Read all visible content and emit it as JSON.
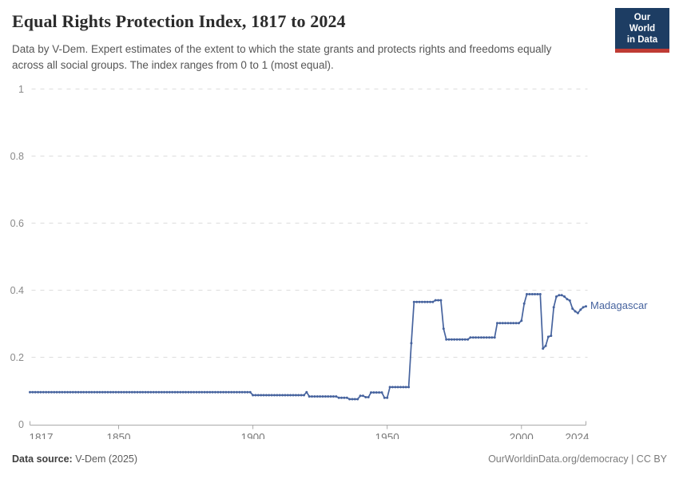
{
  "header": {
    "title": "Equal Rights Protection Index, 1817 to 2024",
    "subtitle": "Data by V-Dem. Expert estimates of the extent to which the state grants and protects rights and freedoms equally across all social groups. The index ranges from 0 to 1 (most equal)."
  },
  "logo": {
    "line1": "Our World",
    "line2": "in Data",
    "bg_color": "#1d3d63",
    "stripe_color": "#bf3b34"
  },
  "footer": {
    "source_label": "Data source:",
    "source_value": " V-Dem (2025)",
    "credit": "OurWorldinData.org/democracy | CC BY"
  },
  "chart_data": {
    "type": "line",
    "title": "Equal Rights Protection Index, 1817 to 2024",
    "xlabel": "",
    "ylabel": "",
    "xlim": [
      1817,
      2024
    ],
    "ylim": [
      0,
      1
    ],
    "x_ticks": [
      1817,
      1850,
      1900,
      1950,
      2000,
      2024
    ],
    "y_ticks": [
      0,
      0.2,
      0.4,
      0.6,
      0.8,
      1
    ],
    "grid": "dashed horizontal",
    "legend_position": "entity label right of line end",
    "x_start": 1817,
    "series": [
      {
        "name": "Madagascar",
        "color": "#46639e",
        "values": [
          0.096,
          0.096,
          0.096,
          0.096,
          0.096,
          0.096,
          0.096,
          0.096,
          0.096,
          0.096,
          0.096,
          0.096,
          0.096,
          0.096,
          0.096,
          0.096,
          0.096,
          0.096,
          0.096,
          0.096,
          0.096,
          0.096,
          0.096,
          0.096,
          0.096,
          0.096,
          0.096,
          0.096,
          0.096,
          0.096,
          0.096,
          0.096,
          0.096,
          0.096,
          0.096,
          0.096,
          0.096,
          0.096,
          0.096,
          0.096,
          0.096,
          0.096,
          0.096,
          0.096,
          0.096,
          0.096,
          0.096,
          0.096,
          0.096,
          0.096,
          0.096,
          0.096,
          0.096,
          0.096,
          0.096,
          0.096,
          0.096,
          0.096,
          0.096,
          0.096,
          0.096,
          0.096,
          0.096,
          0.096,
          0.096,
          0.096,
          0.096,
          0.096,
          0.096,
          0.096,
          0.096,
          0.096,
          0.096,
          0.096,
          0.096,
          0.096,
          0.096,
          0.096,
          0.096,
          0.096,
          0.096,
          0.096,
          0.096,
          0.087,
          0.087,
          0.087,
          0.087,
          0.087,
          0.087,
          0.087,
          0.087,
          0.087,
          0.087,
          0.087,
          0.087,
          0.087,
          0.087,
          0.087,
          0.087,
          0.087,
          0.087,
          0.087,
          0.087,
          0.096,
          0.083,
          0.083,
          0.083,
          0.083,
          0.083,
          0.083,
          0.083,
          0.083,
          0.083,
          0.083,
          0.083,
          0.079,
          0.079,
          0.079,
          0.079,
          0.075,
          0.075,
          0.075,
          0.075,
          0.085,
          0.085,
          0.081,
          0.081,
          0.095,
          0.095,
          0.095,
          0.095,
          0.095,
          0.079,
          0.079,
          0.111,
          0.111,
          0.111,
          0.111,
          0.111,
          0.111,
          0.111,
          0.111,
          0.242,
          0.365,
          0.365,
          0.365,
          0.365,
          0.365,
          0.365,
          0.365,
          0.365,
          0.37,
          0.37,
          0.37,
          0.285,
          0.253,
          0.253,
          0.253,
          0.253,
          0.253,
          0.253,
          0.253,
          0.253,
          0.253,
          0.259,
          0.259,
          0.259,
          0.259,
          0.259,
          0.259,
          0.259,
          0.259,
          0.259,
          0.259,
          0.302,
          0.302,
          0.302,
          0.302,
          0.302,
          0.302,
          0.302,
          0.302,
          0.302,
          0.309,
          0.36,
          0.388,
          0.388,
          0.388,
          0.388,
          0.388,
          0.388,
          0.226,
          0.234,
          0.261,
          0.264,
          0.349,
          0.381,
          0.385,
          0.385,
          0.381,
          0.373,
          0.369,
          0.345,
          0.337,
          0.332,
          0.342,
          0.349,
          0.352
        ]
      }
    ]
  }
}
